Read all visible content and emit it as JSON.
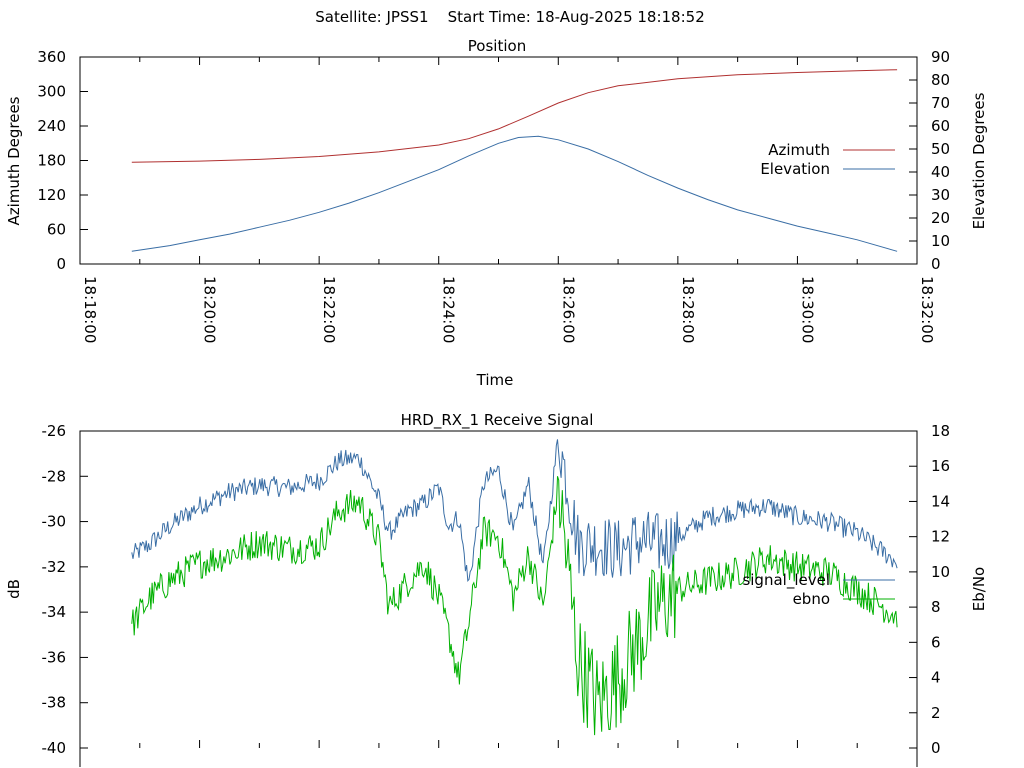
{
  "header": {
    "title": "Satellite: JPSS1    Start Time: 18-Aug-2025 18:18:52"
  },
  "chart_data": [
    {
      "type": "line",
      "title": "Position",
      "xlabel": "Time",
      "ylabel": "Azimuth Degrees",
      "y2label": "Elevation Degrees",
      "xlim": [
        "18:18:00",
        "18:32:00"
      ],
      "ylim": [
        0,
        360
      ],
      "y2lim": [
        0,
        90
      ],
      "x_ticks": [
        "18:18:00",
        "18:20:00",
        "18:22:00",
        "18:24:00",
        "18:26:00",
        "18:28:00",
        "18:30:00",
        "18:32:00"
      ],
      "y_ticks": [
        0,
        60,
        120,
        180,
        240,
        300,
        360
      ],
      "y2_ticks": [
        0,
        10,
        20,
        30,
        40,
        50,
        60,
        70,
        80,
        90
      ],
      "legend_position": "right",
      "series": [
        {
          "name": "Azimuth",
          "axis": "left",
          "color": "#b03030",
          "x": [
            "18:18:52",
            "18:20:00",
            "18:21:00",
            "18:22:00",
            "18:23:00",
            "18:24:00",
            "18:24:30",
            "18:25:00",
            "18:25:30",
            "18:26:00",
            "18:26:30",
            "18:27:00",
            "18:28:00",
            "18:29:00",
            "18:30:00",
            "18:31:00",
            "18:31:40"
          ],
          "values": [
            177,
            179,
            182,
            187,
            195,
            207,
            218,
            235,
            257,
            280,
            298,
            310,
            322,
            329,
            333,
            336,
            338
          ]
        },
        {
          "name": "Elevation",
          "axis": "right",
          "color": "#3a6ea5",
          "x": [
            "18:18:52",
            "18:19:30",
            "18:20:00",
            "18:20:30",
            "18:21:00",
            "18:21:30",
            "18:22:00",
            "18:22:30",
            "18:23:00",
            "18:23:30",
            "18:24:00",
            "18:24:30",
            "18:25:00",
            "18:25:20",
            "18:25:40",
            "18:26:00",
            "18:26:30",
            "18:27:00",
            "18:27:30",
            "18:28:00",
            "18:28:30",
            "18:29:00",
            "18:29:30",
            "18:30:00",
            "18:30:30",
            "18:31:00",
            "18:31:40"
          ],
          "values": [
            5.5,
            8,
            10.5,
            13,
            16,
            19,
            22.5,
            26.5,
            31,
            36,
            41,
            47,
            52.5,
            55,
            55.5,
            54,
            50,
            44.5,
            38.5,
            33,
            28,
            23.5,
            20,
            16.5,
            13.5,
            10.5,
            5.5
          ]
        }
      ]
    },
    {
      "type": "line",
      "title": "HRD_RX_1 Receive Signal",
      "xlabel": "",
      "ylabel": "dB",
      "y2label": "Eb/No",
      "xlim": [
        "18:18:00",
        "18:32:00"
      ],
      "ylim": [
        -40,
        -26
      ],
      "y2lim": [
        0,
        18
      ],
      "y_ticks": [
        -40,
        -38,
        -36,
        -34,
        -32,
        -30,
        -28,
        -26
      ],
      "y2_ticks": [
        0,
        2,
        4,
        6,
        8,
        10,
        12,
        14,
        16,
        18
      ],
      "legend_position": "right",
      "series": [
        {
          "name": "signal_level",
          "axis": "left",
          "color": "#3a6ea5",
          "x": [
            "18:18:52",
            "18:19:10",
            "18:19:30",
            "18:20:00",
            "18:20:30",
            "18:21:00",
            "18:21:30",
            "18:22:00",
            "18:22:20",
            "18:22:40",
            "18:23:00",
            "18:23:10",
            "18:23:30",
            "18:23:45",
            "18:24:00",
            "18:24:10",
            "18:24:20",
            "18:24:30",
            "18:24:45",
            "18:25:00",
            "18:25:15",
            "18:25:30",
            "18:25:45",
            "18:26:00",
            "18:26:20",
            "18:26:40",
            "18:27:00",
            "18:27:20",
            "18:27:40",
            "18:28:00",
            "18:28:30",
            "18:29:00",
            "18:29:30",
            "18:30:00",
            "18:30:30",
            "18:31:00",
            "18:31:40"
          ],
          "values": [
            -31.5,
            -31,
            -30.2,
            -29.3,
            -28.7,
            -28.4,
            -28.5,
            -28.2,
            -27.3,
            -27.2,
            -29,
            -30.5,
            -29.5,
            -29.2,
            -28.5,
            -30.2,
            -29.8,
            -32.8,
            -28.3,
            -27.7,
            -30.5,
            -28.3,
            -32,
            -26.2,
            -31,
            -31,
            -31.3,
            -30.8,
            -31,
            -30.7,
            -29.8,
            -29.5,
            -29.3,
            -29.8,
            -30,
            -30.5,
            -31.8
          ]
        },
        {
          "name": "ebno",
          "axis": "right",
          "color": "#00b000",
          "x": [
            "18:18:52",
            "18:19:10",
            "18:19:30",
            "18:20:00",
            "18:20:30",
            "18:21:00",
            "18:21:30",
            "18:22:00",
            "18:22:20",
            "18:22:40",
            "18:23:00",
            "18:23:10",
            "18:23:30",
            "18:23:45",
            "18:24:00",
            "18:24:10",
            "18:24:20",
            "18:24:30",
            "18:24:45",
            "18:25:00",
            "18:25:15",
            "18:25:30",
            "18:25:45",
            "18:26:00",
            "18:26:20",
            "18:26:40",
            "18:27:00",
            "18:27:20",
            "18:27:40",
            "18:28:00",
            "18:28:30",
            "18:29:00",
            "18:29:30",
            "18:30:00",
            "18:30:30",
            "18:31:00",
            "18:31:40"
          ],
          "values": [
            7,
            8.5,
            9.5,
            10.5,
            11,
            11.7,
            11.3,
            11.5,
            13.5,
            14,
            11.8,
            8,
            9.5,
            10.5,
            8.5,
            6.5,
            4,
            7,
            12.3,
            12,
            8.5,
            11,
            8,
            15,
            5,
            2.5,
            4,
            6,
            8,
            9,
            9.5,
            10,
            10.8,
            10.3,
            10,
            9,
            7.5
          ]
        }
      ]
    }
  ]
}
